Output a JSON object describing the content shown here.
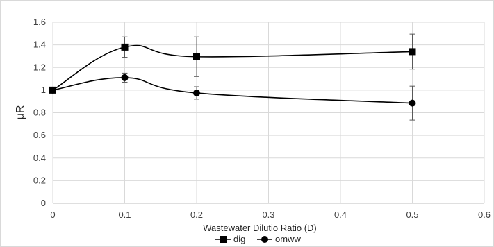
{
  "chart_data": {
    "type": "line",
    "smoothed": true,
    "xlabel": "Wastewater Dilutio Ratio (D)",
    "ylabel": "μR",
    "xlim": [
      0,
      0.6
    ],
    "ylim": [
      0,
      1.6
    ],
    "x_ticks": [
      "0",
      "0.1",
      "0.2",
      "0.3",
      "0.4",
      "0.5",
      "0.6"
    ],
    "y_ticks": [
      "0",
      "0.2",
      "0.4",
      "0.6",
      "0.8",
      "1",
      "1.2",
      "1.4",
      "1.6"
    ],
    "grid": true,
    "legend_position": "bottom",
    "series": [
      {
        "name": "dig",
        "marker": "square",
        "color": "#000000",
        "x": [
          0,
          0.1,
          0.2,
          0.5
        ],
        "values": [
          1.0,
          1.38,
          1.295,
          1.34
        ],
        "error": [
          0,
          0.09,
          0.175,
          0.155
        ]
      },
      {
        "name": "omww",
        "marker": "circle",
        "color": "#000000",
        "x": [
          0,
          0.1,
          0.2,
          0.5
        ],
        "values": [
          1.0,
          1.11,
          0.975,
          0.885
        ],
        "error": [
          0,
          0.04,
          0.055,
          0.15
        ]
      }
    ]
  }
}
